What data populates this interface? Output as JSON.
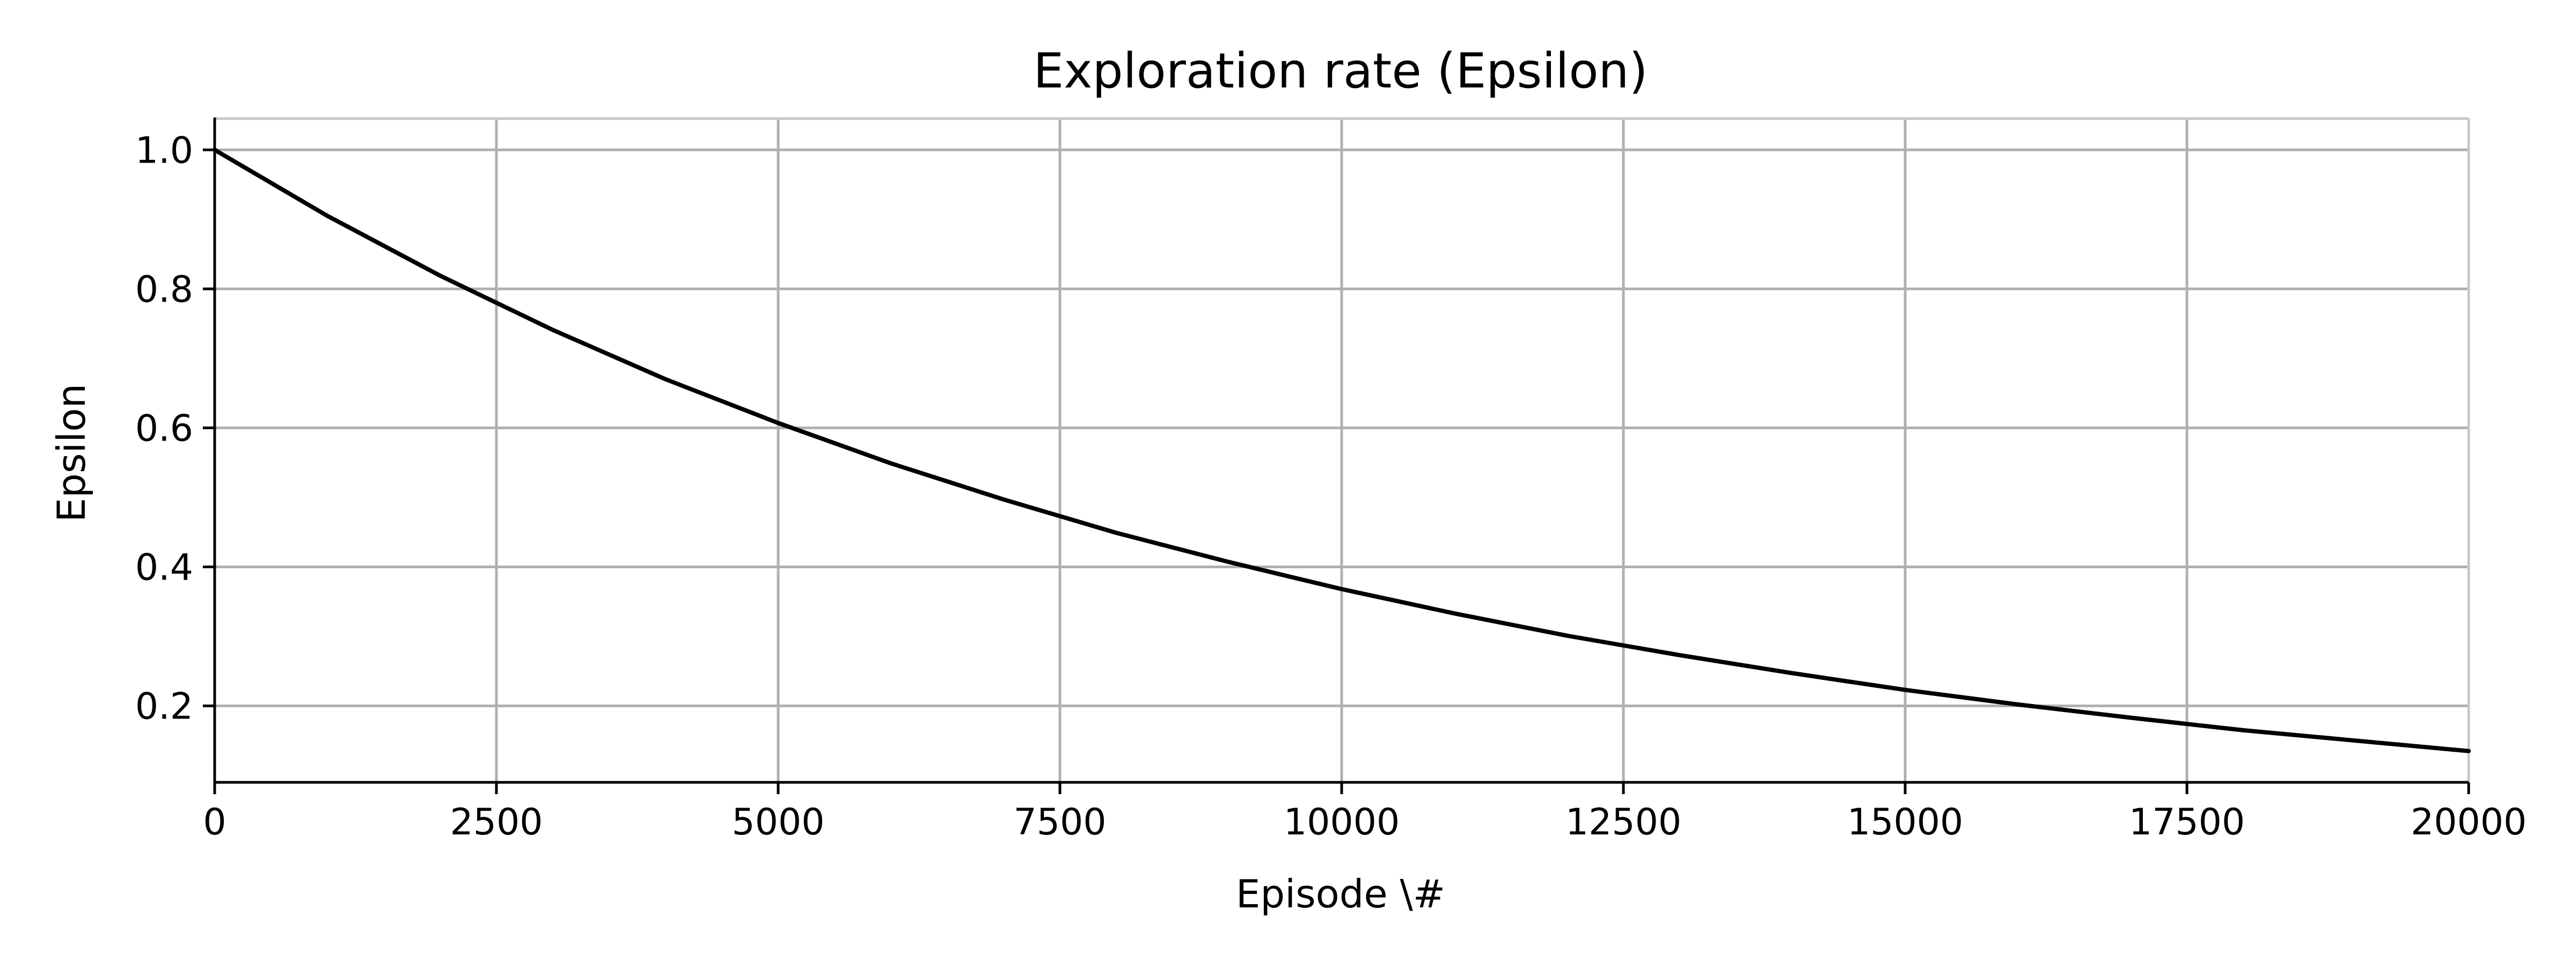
{
  "chart_data": {
    "type": "line",
    "title": "Exploration rate (Epsilon)",
    "xlabel": "Episode \\#",
    "ylabel": "Epsilon",
    "xlim": [
      0,
      20000
    ],
    "ylim": [
      0.09,
      1.045
    ],
    "xticks": [
      0,
      2500,
      5000,
      7500,
      10000,
      12500,
      15000,
      17500,
      20000
    ],
    "yticks": [
      0.2,
      0.4,
      0.6,
      0.8,
      1.0
    ],
    "xtick_labels": [
      "0",
      "2500",
      "5000",
      "7500",
      "10000",
      "12500",
      "15000",
      "17500",
      "20000"
    ],
    "ytick_labels": [
      "0.2",
      "0.4",
      "0.6",
      "0.8",
      "1.0"
    ],
    "grid": true,
    "legend": "none",
    "series": [
      {
        "color": "#000000",
        "x": [
          0,
          1000,
          2000,
          3000,
          4000,
          5000,
          6000,
          7000,
          8000,
          9000,
          10000,
          11000,
          12000,
          13000,
          14000,
          15000,
          16000,
          17000,
          18000,
          19000,
          20000
        ],
        "y": [
          1.0,
          0.905,
          0.819,
          0.741,
          0.67,
          0.607,
          0.549,
          0.497,
          0.449,
          0.407,
          0.368,
          0.333,
          0.301,
          0.273,
          0.247,
          0.223,
          0.202,
          0.183,
          0.165,
          0.15,
          0.135
        ]
      }
    ]
  }
}
